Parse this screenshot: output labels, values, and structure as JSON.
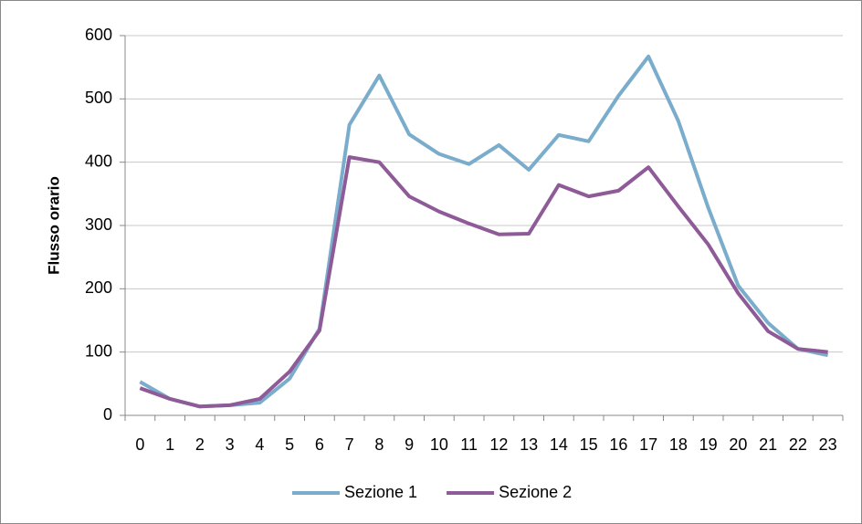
{
  "chart_data": {
    "type": "line",
    "y_label": "Flusso orario",
    "x": [
      0,
      1,
      2,
      3,
      4,
      5,
      6,
      7,
      8,
      9,
      10,
      11,
      12,
      13,
      14,
      15,
      16,
      17,
      18,
      19,
      20,
      21,
      22,
      23
    ],
    "series": [
      {
        "name": "Sezione 1",
        "color": "#7aaccc",
        "values": [
          53,
          26,
          14,
          16,
          20,
          58,
          137,
          459,
          537,
          444,
          413,
          397,
          427,
          388,
          443,
          433,
          505,
          567,
          465,
          328,
          205,
          146,
          105,
          95
        ]
      },
      {
        "name": "Sezione 2",
        "color": "#8e5a98",
        "values": [
          43,
          26,
          14,
          16,
          26,
          69,
          134,
          408,
          400,
          346,
          322,
          303,
          286,
          287,
          364,
          346,
          355,
          392,
          330,
          270,
          193,
          133,
          105,
          100
        ]
      }
    ],
    "ylim": [
      0,
      600
    ],
    "yticks": [
      0,
      100,
      200,
      300,
      400,
      500,
      600
    ],
    "grid": true,
    "legend": "bottom"
  }
}
